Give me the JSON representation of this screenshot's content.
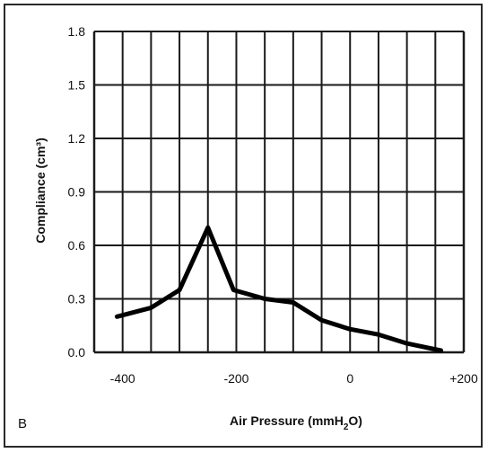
{
  "panel_label": "B",
  "chart_data": {
    "type": "line",
    "xlabel": "Air Pressure (mmH",
    "xlabel_sub": "2",
    "xlabel_end": "O)",
    "ylabel": "Compliance (cm³)",
    "xlim": [
      -450,
      200
    ],
    "ylim": [
      0.0,
      1.8
    ],
    "x_ticks": [
      -400,
      -200,
      0,
      200
    ],
    "x_tick_labels": [
      "-400",
      "-200",
      "0",
      "+200"
    ],
    "y_ticks": [
      0.0,
      0.3,
      0.6,
      0.9,
      1.2,
      1.5,
      1.8
    ],
    "y_tick_labels": [
      "0.0",
      "0.3",
      "0.6",
      "0.9",
      "1.2",
      "1.5",
      "1.8"
    ],
    "grid": true,
    "series": [
      {
        "x": [
          -410,
          -350,
          -300,
          -250,
          -205,
          -150,
          -100,
          -50,
          0,
          50,
          100,
          160
        ],
        "y": [
          0.2,
          0.25,
          0.35,
          0.7,
          0.35,
          0.3,
          0.28,
          0.18,
          0.13,
          0.1,
          0.05,
          0.01
        ]
      }
    ]
  }
}
